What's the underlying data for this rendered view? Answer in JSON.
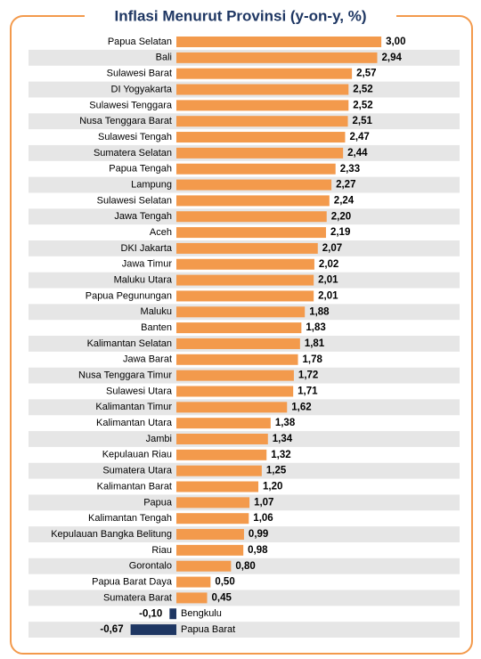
{
  "chart_data": {
    "type": "hbar",
    "title": "Inflasi Menurut Provinsi (y-on-y, %)",
    "categories": [
      "Papua Selatan",
      "Bali",
      "Sulawesi Barat",
      "DI Yogyakarta",
      "Sulawesi Tenggara",
      "Nusa Tenggara Barat",
      "Sulawesi Tengah",
      "Sumatera Selatan",
      "Papua Tengah",
      "Lampung",
      "Sulawesi Selatan",
      "Jawa Tengah",
      "Aceh",
      "DKI Jakarta",
      "Jawa Timur",
      "Maluku Utara",
      "Papua Pegunungan",
      "Maluku",
      "Banten",
      "Kalimantan Selatan",
      "Jawa Barat",
      "Nusa Tenggara Timur",
      "Sulawesi Utara",
      "Kalimantan Timur",
      "Kalimantan Utara",
      "Jambi",
      "Kepulauan Riau",
      "Sumatera Utara",
      "Kalimantan Barat",
      "Papua",
      "Kalimantan Tengah",
      "Kepulauan Bangka Belitung",
      "Riau",
      "Gorontalo",
      "Papua Barat Daya",
      "Sumatera Barat",
      "Bengkulu",
      "Papua Barat"
    ],
    "values": [
      3.0,
      2.94,
      2.57,
      2.52,
      2.52,
      2.51,
      2.47,
      2.44,
      2.33,
      2.27,
      2.24,
      2.2,
      2.19,
      2.07,
      2.02,
      2.01,
      2.01,
      1.88,
      1.83,
      1.81,
      1.78,
      1.72,
      1.71,
      1.62,
      1.38,
      1.34,
      1.32,
      1.25,
      1.2,
      1.07,
      1.06,
      0.99,
      0.98,
      0.8,
      0.5,
      0.45,
      -0.1,
      -0.67
    ],
    "value_labels": [
      "3,00",
      "2,94",
      "2,57",
      "2,52",
      "2,52",
      "2,51",
      "2,47",
      "2,44",
      "2,33",
      "2,27",
      "2,24",
      "2,20",
      "2,19",
      "2,07",
      "2,02",
      "2,01",
      "2,01",
      "1,88",
      "1,83",
      "1,81",
      "1,78",
      "1,72",
      "1,71",
      "1,62",
      "1,38",
      "1,34",
      "1,32",
      "1,25",
      "1,20",
      "1,07",
      "1,06",
      "0,99",
      "0,98",
      "0,80",
      "0,50",
      "0,45",
      "-0,10",
      "-0,67"
    ],
    "color": "#f39a4c",
    "negative_color": "#1f3763",
    "stripes": true
  }
}
